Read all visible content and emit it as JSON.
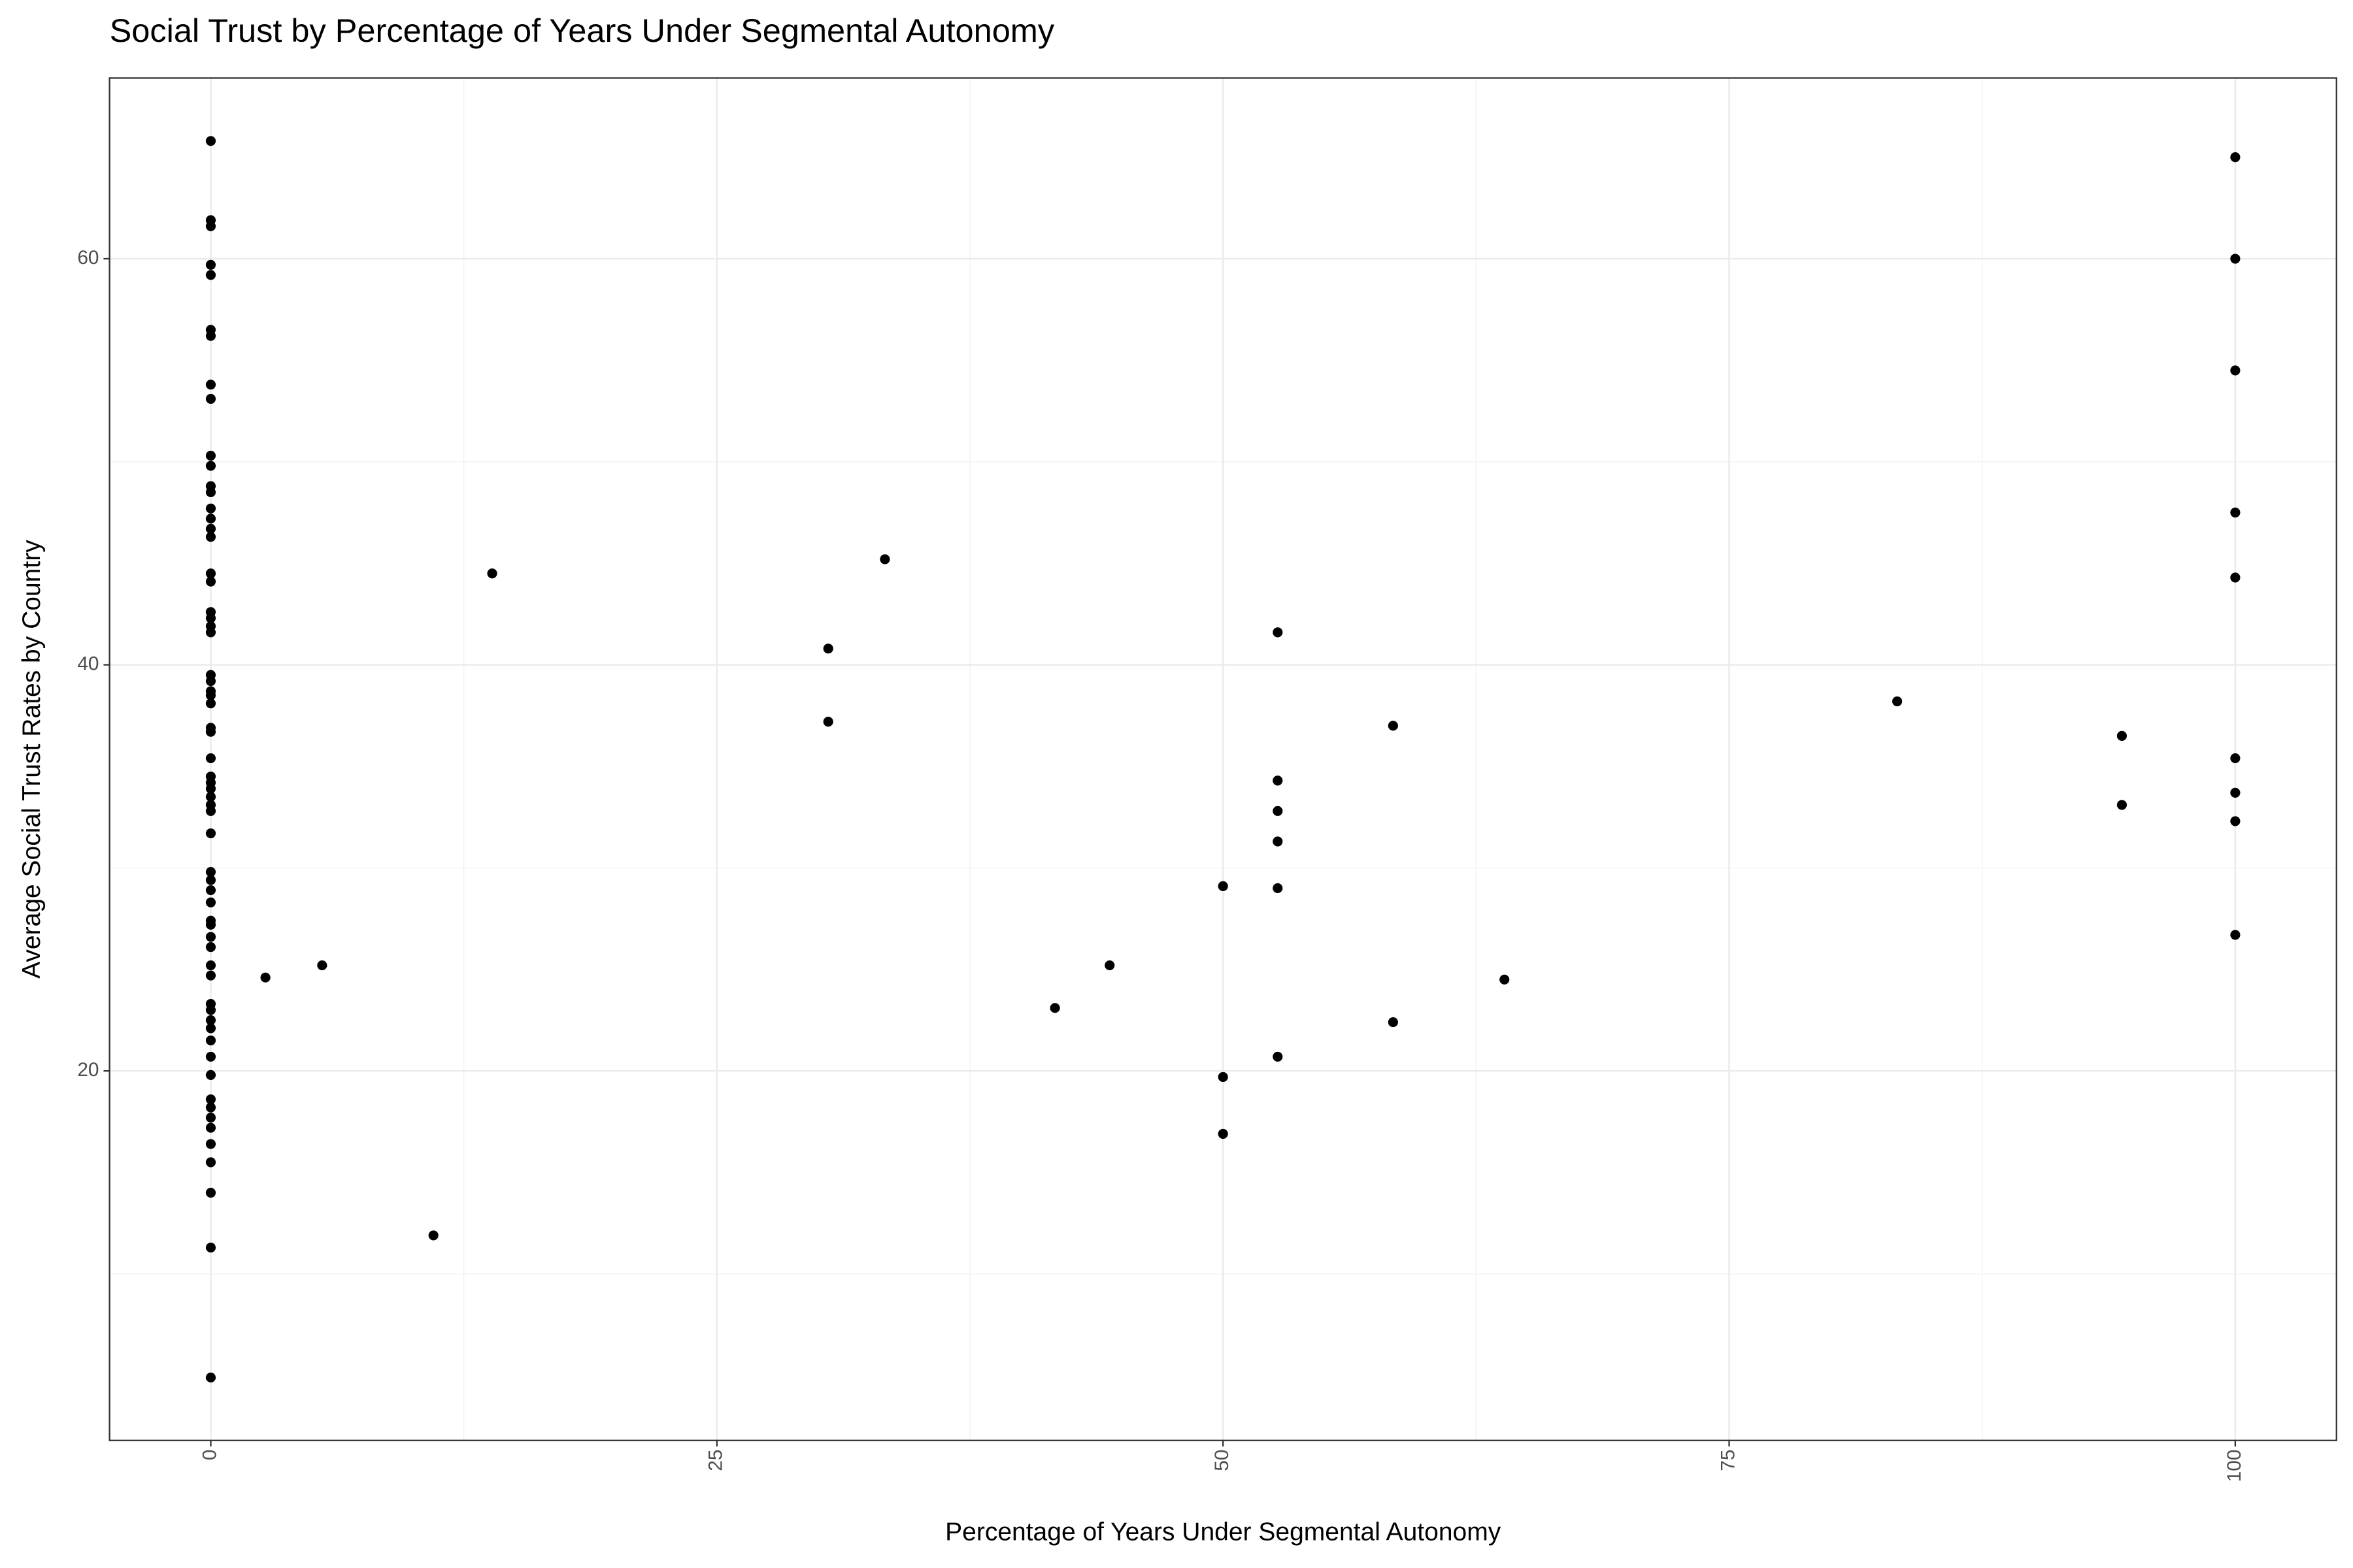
{
  "chart_data": {
    "type": "scatter",
    "title": "Social Trust by Percentage of Years Under Segmental Autonomy",
    "x_label": "Percentage of Years Under Segmental Autonomy",
    "y_label": "Average Social Trust Rates by Country",
    "xlim": [
      -5,
      105
    ],
    "ylim": [
      1.8,
      68.9
    ],
    "xticks": [
      0,
      25,
      50,
      75,
      100
    ],
    "yticks": [
      20,
      40,
      60
    ],
    "x_minor_grid": [
      12.5,
      37.5,
      62.5,
      87.5
    ],
    "y_minor_grid": [
      10,
      30,
      50
    ],
    "grid": true,
    "series": [
      {
        "color": "#000000",
        "x": [
          0,
          0,
          0,
          0,
          0,
          0,
          0,
          0,
          0,
          0,
          0,
          0,
          0,
          0,
          0,
          0,
          0,
          0,
          0,
          0,
          0,
          0,
          0,
          0,
          0,
          0,
          0,
          0,
          0,
          0,
          0,
          0,
          0,
          0,
          0,
          0,
          0,
          0,
          0,
          0,
          0,
          0,
          0,
          0,
          0,
          0,
          0,
          0,
          0,
          0,
          0,
          0,
          0,
          0,
          0,
          0,
          0,
          0,
          0,
          0,
          0,
          0,
          0,
          0,
          2.7,
          5.5,
          11.0,
          13.9,
          30.5,
          30.5,
          33.3,
          41.7,
          44.4,
          50.0,
          50.0,
          50.0,
          52.7,
          52.7,
          52.7,
          52.7,
          52.7,
          52.7,
          58.4,
          58.4,
          63.9,
          83.3,
          94.4,
          94.4,
          100,
          100,
          100,
          100,
          100,
          100,
          100,
          100,
          100
        ],
        "values": [
          65.8,
          61.9,
          61.6,
          59.7,
          59.2,
          56.5,
          56.2,
          53.8,
          53.1,
          50.3,
          49.8,
          48.8,
          48.5,
          47.7,
          47.2,
          46.7,
          46.3,
          44.5,
          44.1,
          42.6,
          42.3,
          41.9,
          41.6,
          39.5,
          39.2,
          38.7,
          38.5,
          38.1,
          36.9,
          36.7,
          35.4,
          34.5,
          34.2,
          33.9,
          33.5,
          33.1,
          32.8,
          31.7,
          29.8,
          29.4,
          28.9,
          28.3,
          27.4,
          27.2,
          26.6,
          26.1,
          25.2,
          24.7,
          23.3,
          23.0,
          22.5,
          22.1,
          21.5,
          20.7,
          19.8,
          18.6,
          18.2,
          17.7,
          17.2,
          16.4,
          15.5,
          14.0,
          11.3,
          4.9,
          24.6,
          25.2,
          11.9,
          44.5,
          40.8,
          37.2,
          45.2,
          23.1,
          25.2,
          29.1,
          19.7,
          16.9,
          41.6,
          34.3,
          32.8,
          31.3,
          29.0,
          20.7,
          37.0,
          22.4,
          24.5,
          38.2,
          36.5,
          33.1,
          65.0,
          60.0,
          54.5,
          47.5,
          44.3,
          35.4,
          33.7,
          32.3,
          26.7
        ]
      }
    ]
  }
}
